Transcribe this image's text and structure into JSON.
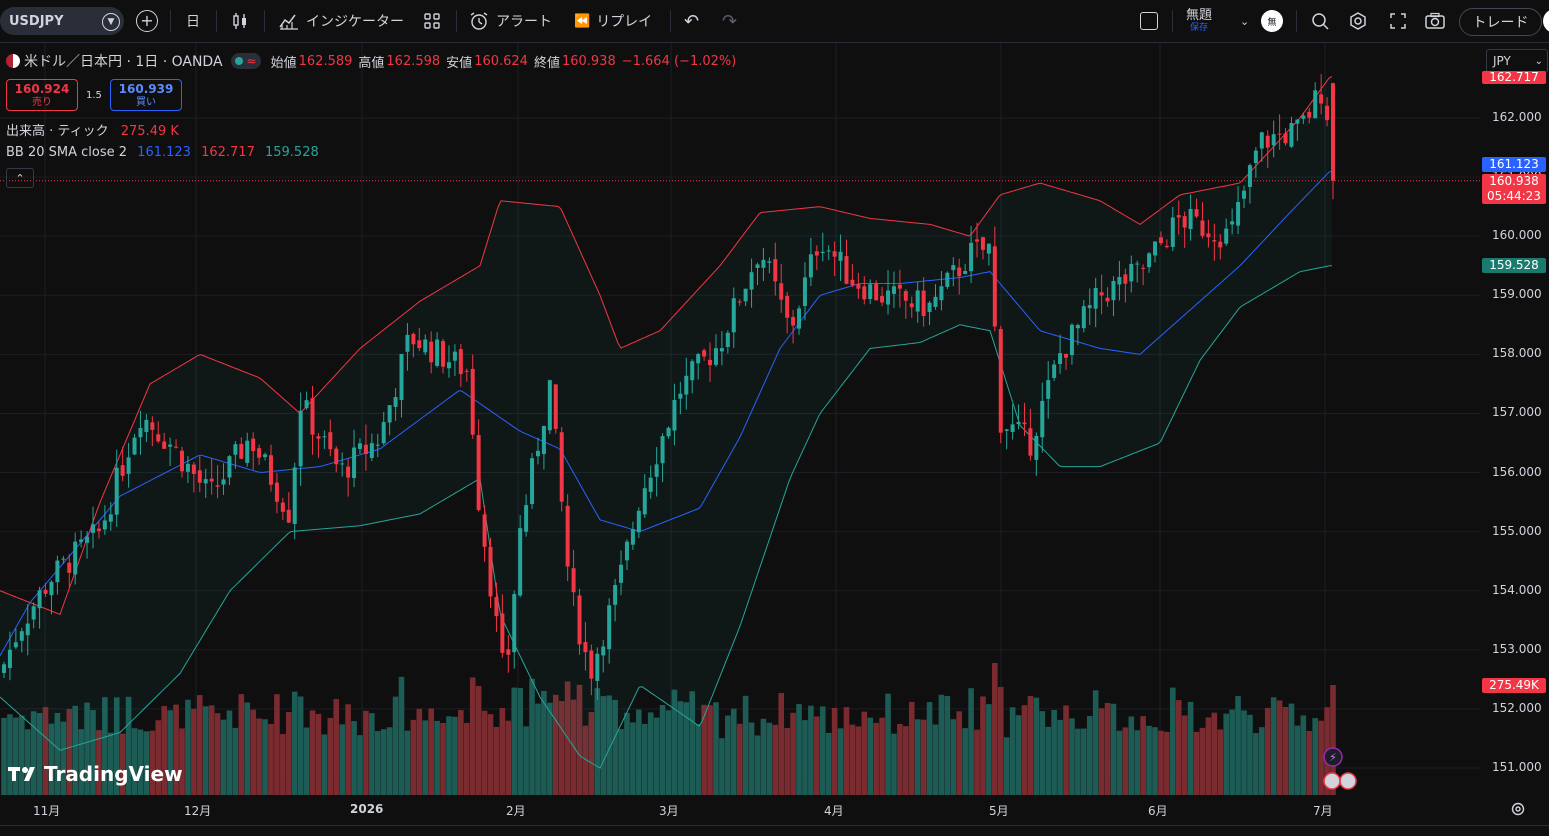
{
  "toolbar": {
    "symbol": "USDJPY",
    "interval": "日",
    "indicators_label": "インジケーター",
    "alert_label": "アラート",
    "replay_label": "リプレイ",
    "layout_name": "無題",
    "layout_saved": "保存",
    "trade_label": "トレード",
    "avatar_text": "無"
  },
  "legend": {
    "pair_name": "米ドル／日本円 · 1日 · OANDA",
    "open_label": "始値",
    "open_value": "162.589",
    "high_label": "高値",
    "high_value": "162.598",
    "low_label": "安値",
    "low_value": "160.624",
    "close_label": "終値",
    "close_value": "160.938",
    "change": "−1.664 (−1.02%)"
  },
  "trade_panel": {
    "sell_price": "160.924",
    "sell_label": "売り",
    "spread": "1.5",
    "buy_price": "160.939",
    "buy_label": "買い"
  },
  "volume_legend": {
    "label": "出来高 · ティック",
    "value": "275.49 K"
  },
  "bb_legend": {
    "label": "BB 20 SMA close 2",
    "basis": "161.123",
    "upper": "162.717",
    "lower": "159.528"
  },
  "price_axis": {
    "currency": "JPY",
    "labels": [
      "162.000",
      "161.000",
      "160.000",
      "159.000",
      "158.000",
      "157.000",
      "156.000",
      "155.000",
      "154.000",
      "153.000",
      "152.000",
      "151.000"
    ],
    "top_partial": "162.717",
    "tag_basis": "161.123",
    "tag_close": "160.938",
    "tag_countdown": "05:44:23",
    "tag_lower": "159.528",
    "tag_volume": "275.49K"
  },
  "time_axis": {
    "labels": [
      "11月",
      "12月",
      "2026",
      "2月",
      "3月",
      "4月",
      "5月",
      "6月",
      "7月"
    ]
  },
  "branding": {
    "logo_text": "TradingView"
  },
  "colors": {
    "up": "#26a69a",
    "down": "#f23645",
    "basis": "#2962ff",
    "upper": "#f23645",
    "lower": "#26a69a",
    "vol_up": "#1d5b55",
    "vol_down": "#7a2b30",
    "background": "#0f0f0f"
  },
  "chart_data": {
    "type": "candlestick",
    "series_anchor": {
      "name": "USDJPY",
      "last_close": 160.938,
      "last_open": 162.589,
      "last_high": 162.598,
      "last_low": 160.624
    },
    "ylim": [
      150.6,
      163.0
    ],
    "bb_last": {
      "basis": 161.123,
      "upper": 162.717,
      "lower": 159.528
    },
    "bb_anchors": {
      "basis": [
        [
          0,
          152.9
        ],
        [
          30,
          153.8
        ],
        [
          80,
          154.8
        ],
        [
          120,
          155.6
        ],
        [
          200,
          156.3
        ],
        [
          260,
          156.0
        ],
        [
          320,
          156.1
        ],
        [
          380,
          156.4
        ],
        [
          460,
          157.4
        ],
        [
          520,
          156.7
        ],
        [
          560,
          156.4
        ],
        [
          600,
          155.2
        ],
        [
          640,
          155.0
        ],
        [
          700,
          155.4
        ],
        [
          740,
          156.6
        ],
        [
          780,
          158.1
        ],
        [
          820,
          159.0
        ],
        [
          860,
          159.2
        ],
        [
          900,
          159.2
        ],
        [
          960,
          159.3
        ],
        [
          990,
          159.4
        ],
        [
          1040,
          158.4
        ],
        [
          1100,
          158.1
        ],
        [
          1140,
          158.0
        ],
        [
          1200,
          158.9
        ],
        [
          1240,
          159.5
        ],
        [
          1290,
          160.4
        ],
        [
          1330,
          161.1
        ]
      ],
      "upper": [
        [
          0,
          154.0
        ],
        [
          60,
          153.6
        ],
        [
          100,
          155.5
        ],
        [
          150,
          157.5
        ],
        [
          200,
          158.0
        ],
        [
          260,
          157.6
        ],
        [
          300,
          157.0
        ],
        [
          360,
          158.1
        ],
        [
          420,
          158.9
        ],
        [
          480,
          159.5
        ],
        [
          500,
          160.6
        ],
        [
          560,
          160.5
        ],
        [
          600,
          159.0
        ],
        [
          620,
          158.1
        ],
        [
          660,
          158.4
        ],
        [
          720,
          159.5
        ],
        [
          760,
          160.4
        ],
        [
          820,
          160.5
        ],
        [
          870,
          160.3
        ],
        [
          930,
          160.2
        ],
        [
          970,
          160.0
        ],
        [
          1000,
          160.7
        ],
        [
          1040,
          160.9
        ],
        [
          1100,
          160.6
        ],
        [
          1140,
          160.2
        ],
        [
          1180,
          160.7
        ],
        [
          1240,
          160.9
        ],
        [
          1300,
          162.0
        ],
        [
          1330,
          162.7
        ]
      ],
      "upper_note": "",
      "lower": [
        [
          0,
          152.2
        ],
        [
          60,
          151.3
        ],
        [
          120,
          151.6
        ],
        [
          180,
          152.6
        ],
        [
          230,
          154.0
        ],
        [
          290,
          155.0
        ],
        [
          360,
          155.1
        ],
        [
          420,
          155.3
        ],
        [
          480,
          155.9
        ],
        [
          500,
          153.6
        ],
        [
          540,
          152.2
        ],
        [
          580,
          151.2
        ],
        [
          600,
          151.0
        ],
        [
          640,
          152.4
        ],
        [
          700,
          151.7
        ],
        [
          740,
          153.4
        ],
        [
          790,
          155.9
        ],
        [
          820,
          157.0
        ],
        [
          870,
          158.1
        ],
        [
          920,
          158.2
        ],
        [
          960,
          158.5
        ],
        [
          990,
          158.4
        ],
        [
          1020,
          156.8
        ],
        [
          1060,
          156.1
        ],
        [
          1100,
          156.1
        ],
        [
          1160,
          156.5
        ],
        [
          1200,
          157.9
        ],
        [
          1240,
          158.8
        ],
        [
          1300,
          159.4
        ],
        [
          1330,
          159.5
        ]
      ]
    },
    "close_anchors": [
      [
        0,
        152.6
      ],
      [
        20,
        153.4
      ],
      [
        50,
        154.2
      ],
      [
        100,
        155.0
      ],
      [
        140,
        157.0
      ],
      [
        170,
        156.5
      ],
      [
        210,
        155.6
      ],
      [
        250,
        156.6
      ],
      [
        290,
        155.3
      ],
      [
        300,
        157.2
      ],
      [
        340,
        156.0
      ],
      [
        380,
        156.6
      ],
      [
        410,
        158.3
      ],
      [
        440,
        158.0
      ],
      [
        470,
        157.7
      ],
      [
        475,
        156.0
      ],
      [
        490,
        154.2
      ],
      [
        505,
        152.4
      ],
      [
        520,
        155.0
      ],
      [
        550,
        157.5
      ],
      [
        570,
        154.0
      ],
      [
        590,
        152.6
      ],
      [
        620,
        154.2
      ],
      [
        640,
        155.6
      ],
      [
        680,
        157.4
      ],
      [
        720,
        158.2
      ],
      [
        760,
        159.8
      ],
      [
        790,
        158.4
      ],
      [
        820,
        160.0
      ],
      [
        850,
        159.3
      ],
      [
        880,
        159.0
      ],
      [
        930,
        158.8
      ],
      [
        970,
        159.7
      ],
      [
        990,
        159.8
      ],
      [
        1000,
        156.9
      ],
      [
        1030,
        156.5
      ],
      [
        1060,
        158.0
      ],
      [
        1100,
        159.0
      ],
      [
        1140,
        159.4
      ],
      [
        1180,
        160.3
      ],
      [
        1230,
        160.0
      ],
      [
        1260,
        161.6
      ],
      [
        1300,
        161.8
      ],
      [
        1325,
        162.6
      ],
      [
        1332,
        160.94
      ]
    ]
  }
}
